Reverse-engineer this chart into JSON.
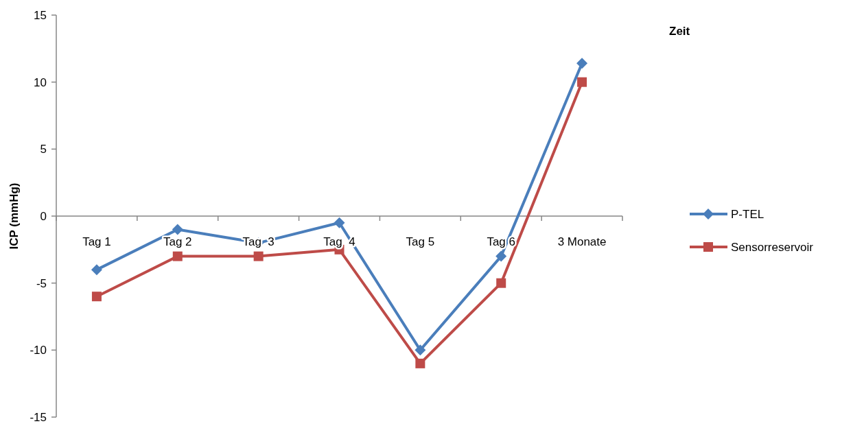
{
  "chart_data": {
    "type": "line",
    "xlabel": "Zeit",
    "ylabel": "ICP (mmHg)",
    "categories": [
      "Tag 1",
      "Tag 2",
      "Tag  3",
      "Tag  4",
      "Tag 5",
      "Tag 6",
      "3 Monate"
    ],
    "series": [
      {
        "name": "P-TEL",
        "color": "#4a7ebb",
        "marker": "diamond",
        "values": [
          -4,
          -1,
          -2,
          -0.5,
          -10,
          -3,
          11.4
        ]
      },
      {
        "name": "Sensorreservoir",
        "color": "#be4b48",
        "marker": "square",
        "values": [
          -6,
          -3,
          -3,
          -2.5,
          -11,
          -5,
          10
        ]
      }
    ],
    "ylim": [
      -15,
      15
    ],
    "yticks": [
      -15,
      -10,
      -5,
      0,
      5,
      10,
      15
    ],
    "grid": false,
    "legend": "right",
    "line_style": "solid"
  }
}
